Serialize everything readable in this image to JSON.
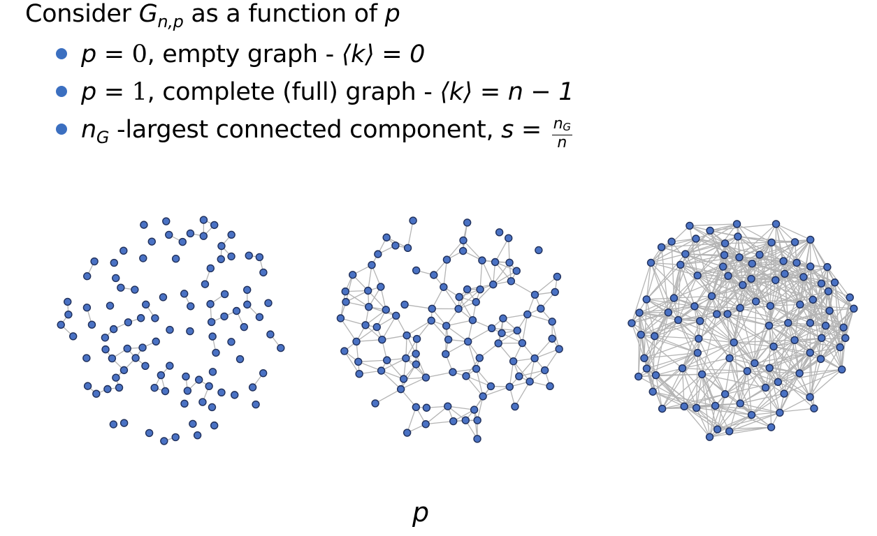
{
  "heading": {
    "prefix": "Consider ",
    "symbol": "G",
    "symbol_sub": "n,p",
    "suffix": " as a function of ",
    "var": "p"
  },
  "bullets": [
    {
      "var": "p",
      "eq": " = 0",
      "text": ", empty graph - ",
      "formula": "⟨k⟩ = 0"
    },
    {
      "var": "p",
      "eq": " = 1",
      "text": ", complete (full) graph - ",
      "formula": "⟨k⟩ = n − 1"
    },
    {
      "var": "n",
      "var_sub": "G",
      "text": " -largest connected component, ",
      "formula_lhs": "s = ",
      "frac_num": "n",
      "frac_num_sub": "G",
      "frac_den": "n"
    }
  ],
  "x_axis_label": "p",
  "colors": {
    "bullet": "#3b6fc0",
    "node_fill": "#4a72c4",
    "node_stroke": "#1f2f5a",
    "edge": "#b4b4b4"
  }
}
